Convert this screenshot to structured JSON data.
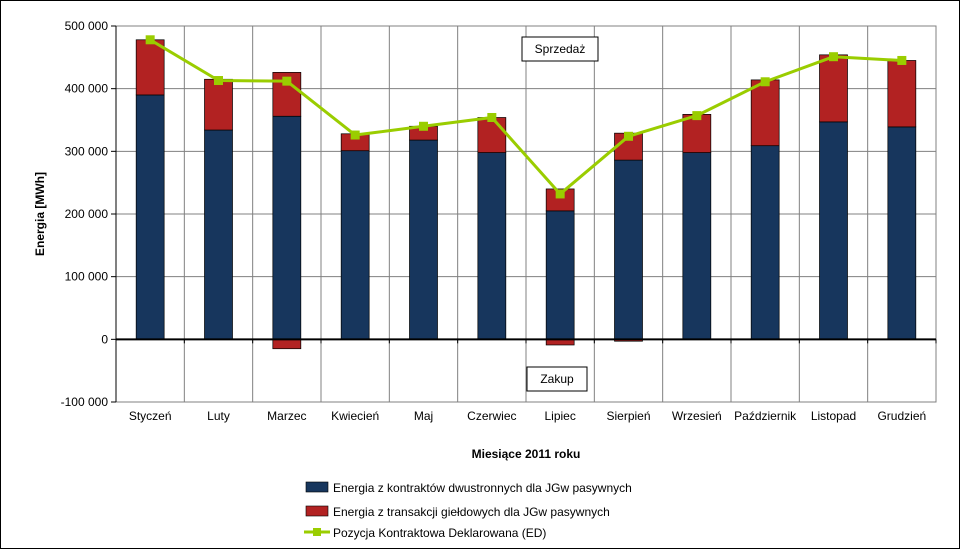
{
  "chart_data": {
    "type": "bar",
    "title": "",
    "xlabel": "Miesiące 2011  roku",
    "ylabel": "Energia  [MWh]",
    "ylim": [
      -100000,
      500000
    ],
    "yticks": [
      -100000,
      0,
      100000,
      200000,
      300000,
      400000,
      500000
    ],
    "ytick_labels": [
      "-100 000",
      "0",
      "100 000",
      "200 000",
      "300 000",
      "400 000",
      "500 000"
    ],
    "grid": true,
    "stacked": true,
    "categories": [
      "Styczeń",
      "Luty",
      "Marzec",
      "Kwiecień",
      "Maj",
      "Czerwiec",
      "Lipiec",
      "Sierpień",
      "Wrzesień",
      "Październik",
      "Listopad",
      "Grudzień"
    ],
    "series": [
      {
        "name": "Energia z kontraktów dwustronnych dla JGw pasywnych",
        "kind": "bar",
        "color": "#17365D",
        "values": [
          390000,
          334000,
          356000,
          301000,
          318000,
          298000,
          205000,
          286000,
          298000,
          309000,
          347000,
          339000
        ]
      },
      {
        "name": "Energia z transakcji giełdowych dla JGw pasywnych",
        "kind": "bar",
        "color": "#B22222",
        "values": [
          88000,
          81000,
          70000,
          27000,
          22000,
          56000,
          35000,
          43000,
          61000,
          105000,
          107000,
          106000
        ],
        "negative_values": [
          0,
          0,
          -15000,
          0,
          0,
          0,
          -9000,
          -3000,
          0,
          0,
          0,
          0
        ]
      },
      {
        "name": "Pozycja Kontraktowa Deklarowana (ED)",
        "kind": "line",
        "color": "#9ACD00",
        "values": [
          478000,
          413000,
          412000,
          326000,
          340000,
          354000,
          232000,
          324000,
          357000,
          411000,
          451000,
          445000
        ]
      }
    ],
    "annotations": [
      {
        "text": "Sprzedaż",
        "position": "upper-center"
      },
      {
        "text": "Zakup",
        "position": "lower-center"
      }
    ],
    "legend_position": "bottom-center"
  }
}
